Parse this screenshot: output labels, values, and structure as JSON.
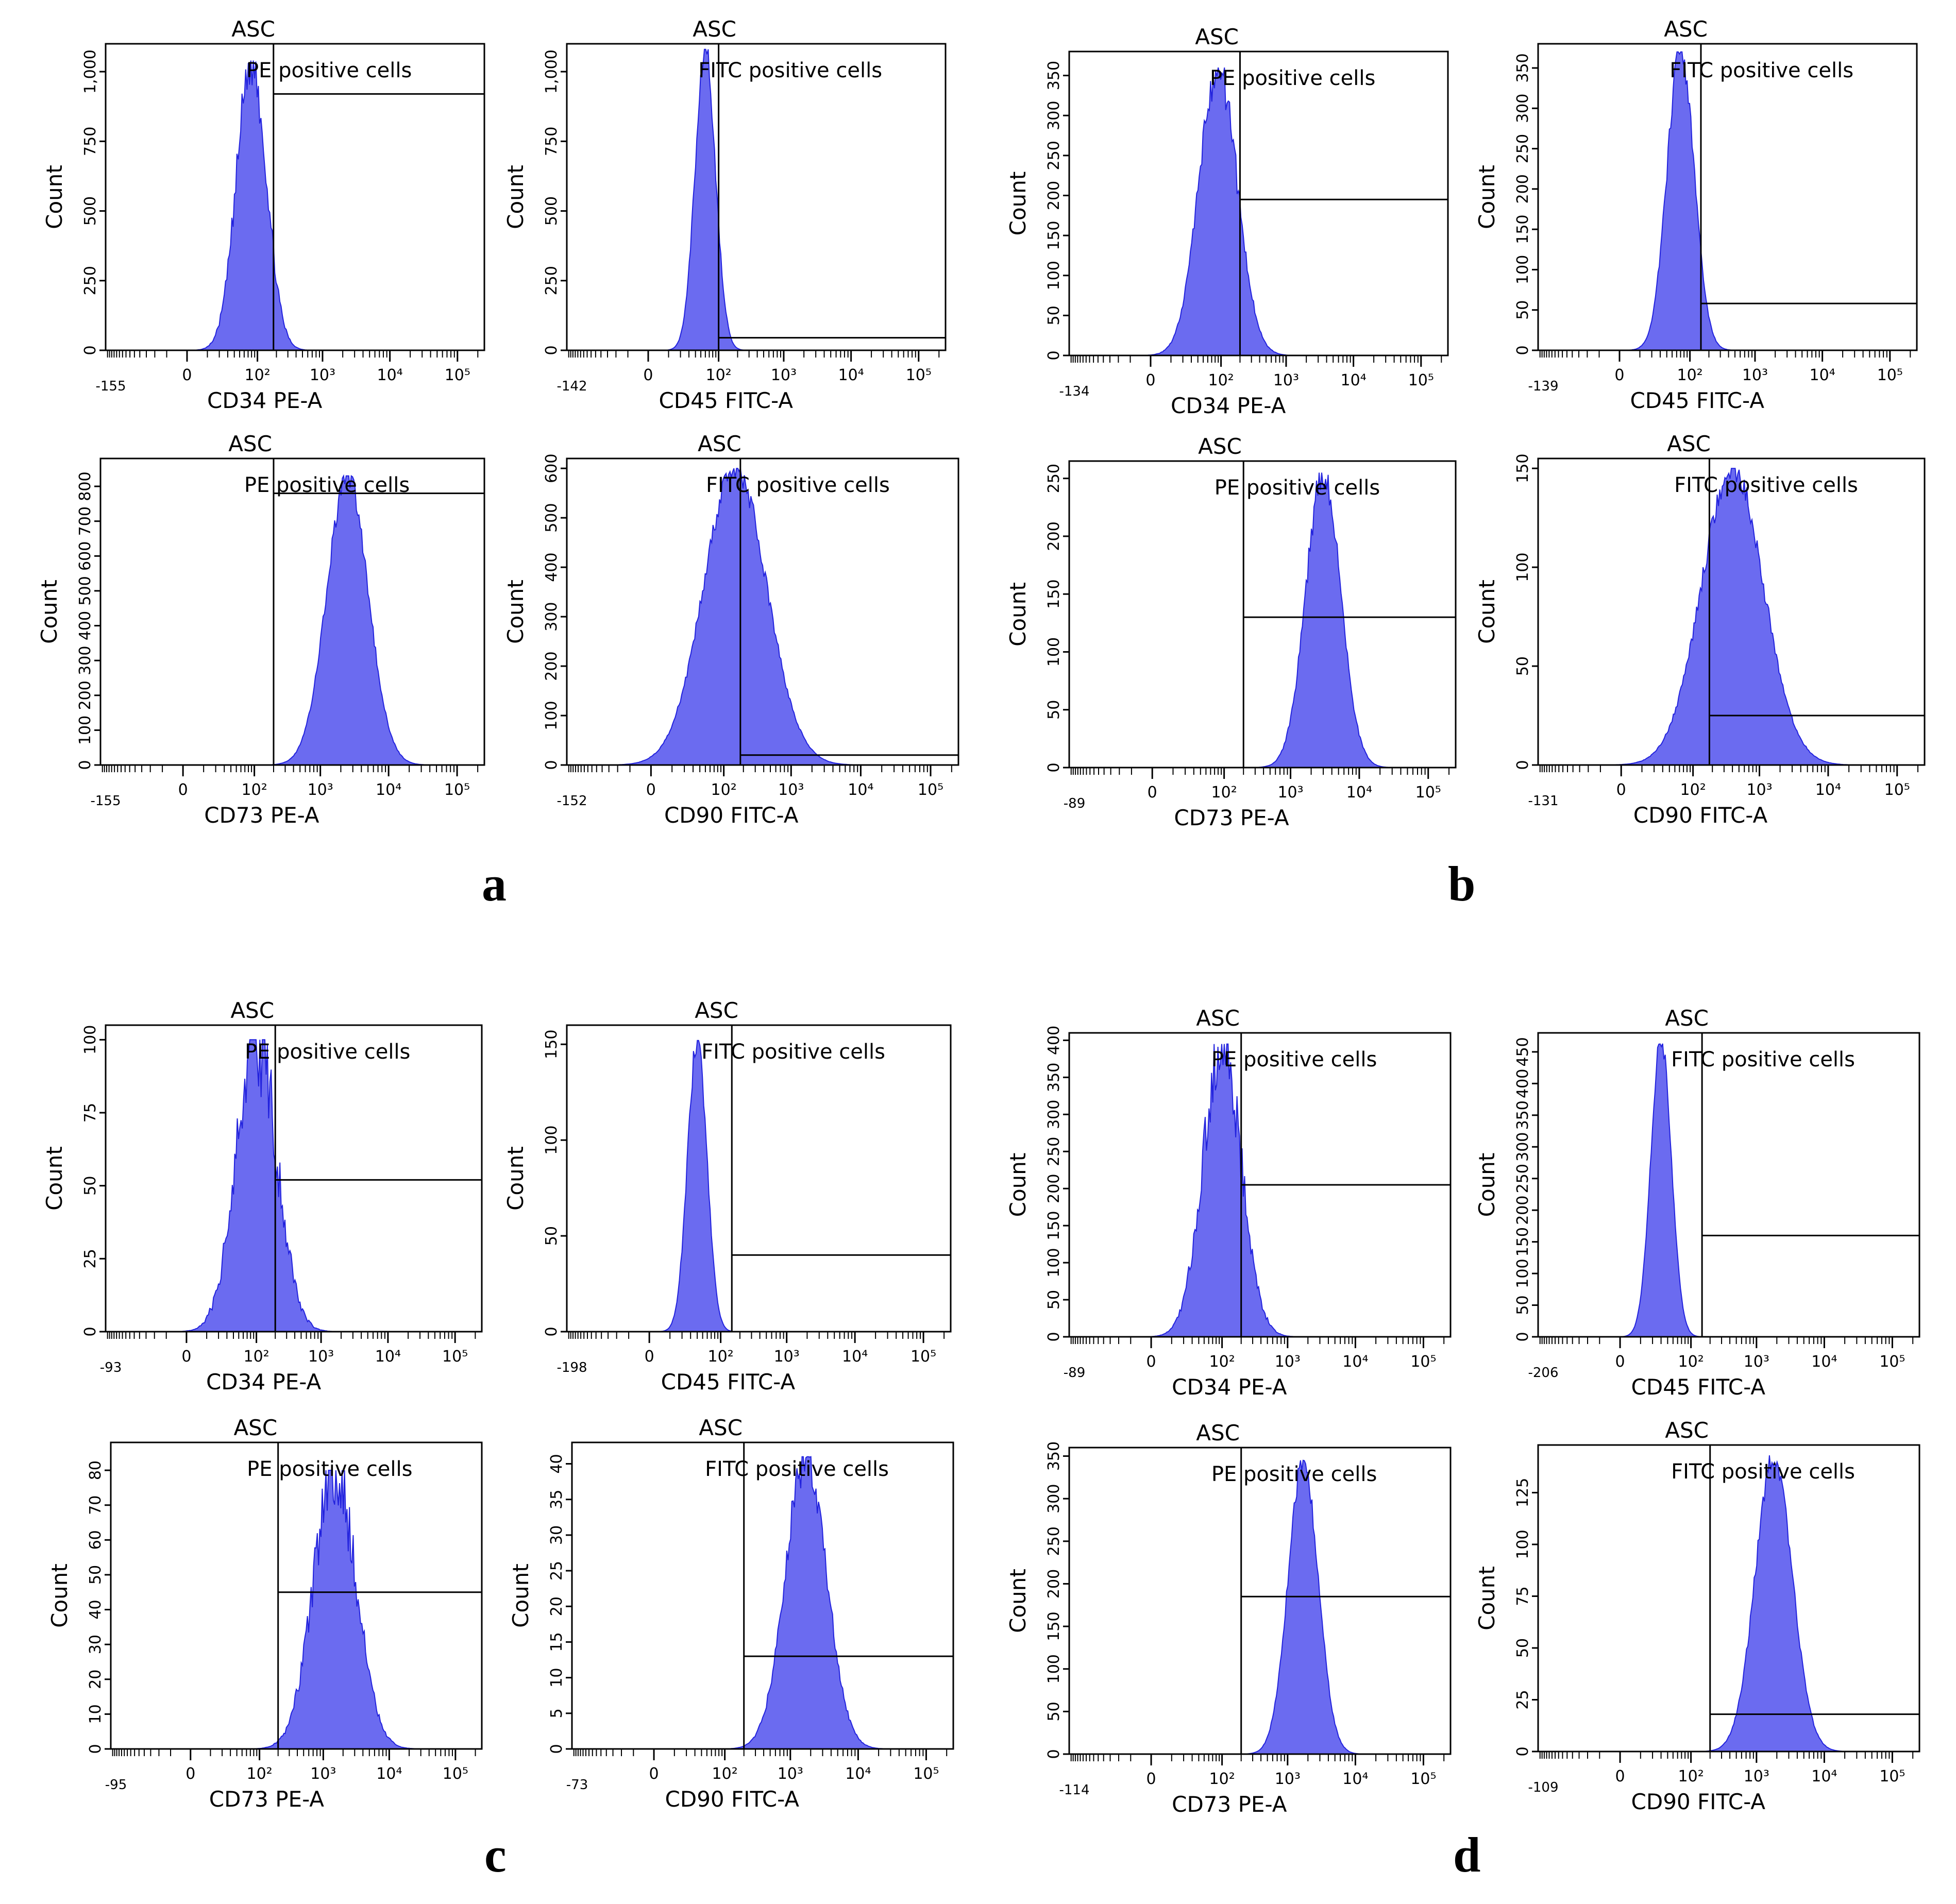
{
  "figure": {
    "panel_letters": [
      "a",
      "b",
      "c",
      "d"
    ]
  },
  "colors": {
    "fill": "#6b6bf0",
    "stroke": "#2222dd",
    "axis": "#000000",
    "gate": "#000000"
  },
  "chart_data": [
    {
      "id": "a1",
      "type": "area",
      "title": "ASC",
      "xlabel": "CD34 PE-A",
      "ylabel": "Count",
      "xmin_label": "-155",
      "ylim": [
        0,
        1100
      ],
      "yticks": [
        0,
        250,
        500,
        750,
        1000
      ],
      "ytick_labels": [
        "0",
        "250",
        "500",
        "750",
        "1,000"
      ],
      "gate_label": "PE positive cells",
      "gate_x": 180,
      "gate_y": 920,
      "peak_x": 80,
      "peak_count": 1040,
      "width": 0.22,
      "jitter": 0.1
    },
    {
      "id": "a2",
      "type": "area",
      "title": "ASC",
      "xlabel": "CD45 FITC-A",
      "ylabel": "Count",
      "xmin_label": "-142",
      "ylim": [
        0,
        1100
      ],
      "yticks": [
        0,
        250,
        500,
        750,
        1000
      ],
      "ytick_labels": [
        "0",
        "250",
        "500",
        "750",
        "1,000"
      ],
      "gate_label": "FITC positive cells",
      "gate_x": 100,
      "gate_y": 45,
      "peak_x": 60,
      "peak_count": 1080,
      "width": 0.15,
      "jitter": 0.05
    },
    {
      "id": "b1",
      "type": "area",
      "title": "ASC",
      "xlabel": "CD34 PE-A",
      "ylabel": "Count",
      "xmin_label": "-134",
      "ylim": [
        0,
        380
      ],
      "yticks": [
        0,
        50,
        100,
        150,
        200,
        250,
        300,
        350
      ],
      "ytick_labels": [
        "0",
        "50",
        "100",
        "150",
        "200",
        "250",
        "300",
        "350"
      ],
      "gate_label": "PE positive cells",
      "gate_x": 200,
      "gate_y": 195,
      "peak_x": 90,
      "peak_count": 360,
      "width": 0.28,
      "jitter": 0.08
    },
    {
      "id": "b2",
      "type": "area",
      "title": "ASC",
      "xlabel": "CD45 FITC-A",
      "ylabel": "Count",
      "xmin_label": "-139",
      "ylim": [
        0,
        380
      ],
      "yticks": [
        0,
        50,
        100,
        150,
        200,
        250,
        300,
        350
      ],
      "ytick_labels": [
        "0",
        "50",
        "100",
        "150",
        "200",
        "250",
        "300",
        "350"
      ],
      "gate_label": "FITC positive cells",
      "gate_x": 150,
      "gate_y": 58,
      "peak_x": 70,
      "peak_count": 370,
      "width": 0.2,
      "jitter": 0.05
    },
    {
      "id": "a3",
      "type": "area",
      "title": "ASC",
      "xlabel": "CD73 PE-A",
      "ylabel": "Count",
      "xmin_label": "-155",
      "ylim": [
        0,
        880
      ],
      "yticks": [
        0,
        100,
        200,
        300,
        400,
        500,
        600,
        700,
        800
      ],
      "ytick_labels": [
        "0",
        "100",
        "200",
        "300",
        "400",
        "500",
        "600",
        "700",
        "800"
      ],
      "gate_label": "PE positive cells",
      "gate_x": 200,
      "gate_y": 780,
      "peak_x": 2500,
      "peak_count": 830,
      "width": 0.3,
      "jitter": 0.04
    },
    {
      "id": "a4",
      "type": "area",
      "title": "ASC",
      "xlabel": "CD90 FITC-A",
      "ylabel": "Count",
      "xmin_label": "-152",
      "ylim": [
        0,
        620
      ],
      "yticks": [
        0,
        100,
        200,
        300,
        400,
        500,
        600
      ],
      "ytick_labels": [
        "0",
        "100",
        "200",
        "300",
        "400",
        "500",
        "600"
      ],
      "gate_label": "FITC positive cells",
      "gate_x": 180,
      "gate_y": 20,
      "peak_x": 150,
      "peak_count": 600,
      "width": 0.45,
      "jitter": 0.04
    },
    {
      "id": "b3",
      "type": "area",
      "title": "ASC",
      "xlabel": "CD73 PE-A",
      "ylabel": "Count",
      "xmin_label": "-89",
      "ylim": [
        0,
        265
      ],
      "yticks": [
        0,
        50,
        100,
        150,
        200,
        250
      ],
      "ytick_labels": [
        "0",
        "50",
        "100",
        "150",
        "200",
        "250"
      ],
      "gate_label": "PE positive cells",
      "gate_x": 200,
      "gate_y": 130,
      "peak_x": 3000,
      "peak_count": 255,
      "width": 0.25,
      "jitter": 0.06
    },
    {
      "id": "b4",
      "type": "area",
      "title": "ASC",
      "xlabel": "CD90 FITC-A",
      "ylabel": "Count",
      "xmin_label": "-131",
      "ylim": [
        0,
        155
      ],
      "yticks": [
        0,
        50,
        100,
        150
      ],
      "ytick_labels": [
        "0",
        "50",
        "100",
        "150"
      ],
      "gate_label": "FITC positive cells",
      "gate_x": 180,
      "gate_y": 25,
      "peak_x": 400,
      "peak_count": 150,
      "width": 0.45,
      "jitter": 0.05
    },
    {
      "id": "c1",
      "type": "area",
      "title": "ASC",
      "xlabel": "CD34 PE-A",
      "ylabel": "Count",
      "xmin_label": "-93",
      "ylim": [
        0,
        105
      ],
      "yticks": [
        0,
        25,
        50,
        75,
        100
      ],
      "ytick_labels": [
        "0",
        "25",
        "50",
        "75",
        "100"
      ],
      "gate_label": "PE positive cells",
      "gate_x": 200,
      "gate_y": 52,
      "peak_x": 100,
      "peak_count": 100,
      "width": 0.3,
      "jitter": 0.18
    },
    {
      "id": "c2",
      "type": "area",
      "title": "ASC",
      "xlabel": "CD45 FITC-A",
      "ylabel": "Count",
      "xmin_label": "-198",
      "ylim": [
        0,
        160
      ],
      "yticks": [
        0,
        50,
        100,
        150
      ],
      "ytick_labels": [
        "0",
        "50",
        "100",
        "150"
      ],
      "gate_label": "FITC positive cells",
      "gate_x": 150,
      "gate_y": 40,
      "peak_x": 40,
      "peak_count": 152,
      "width": 0.14,
      "jitter": 0.04
    },
    {
      "id": "d1",
      "type": "area",
      "title": "ASC",
      "xlabel": "CD34 PE-A",
      "ylabel": "Count",
      "xmin_label": "-89",
      "ylim": [
        0,
        410
      ],
      "yticks": [
        0,
        50,
        100,
        150,
        200,
        250,
        300,
        350,
        400
      ],
      "ytick_labels": [
        "0",
        "50",
        "100",
        "150",
        "200",
        "250",
        "300",
        "350",
        "400"
      ],
      "gate_label": "PE positive cells",
      "gate_x": 200,
      "gate_y": 205,
      "peak_x": 100,
      "peak_count": 395,
      "width": 0.28,
      "jitter": 0.12
    },
    {
      "id": "d2",
      "type": "area",
      "title": "ASC",
      "xlabel": "CD45 FITC-A",
      "ylabel": "Count",
      "xmin_label": "-206",
      "ylim": [
        0,
        480
      ],
      "yticks": [
        0,
        50,
        100,
        150,
        200,
        250,
        300,
        350,
        400,
        450
      ],
      "ytick_labels": [
        "0",
        "50",
        "100",
        "150",
        "200",
        "250",
        "300",
        "350",
        "400",
        "450"
      ],
      "gate_label": "FITC positive cells",
      "gate_x": 150,
      "gate_y": 160,
      "peak_x": 30,
      "peak_count": 470,
      "width": 0.15,
      "jitter": 0.03
    },
    {
      "id": "c3",
      "type": "area",
      "title": "ASC",
      "xlabel": "CD73 PE-A",
      "ylabel": "Count",
      "xmin_label": "-95",
      "ylim": [
        0,
        88
      ],
      "yticks": [
        0,
        10,
        20,
        30,
        40,
        50,
        60,
        70,
        80
      ],
      "ytick_labels": [
        "0",
        "10",
        "20",
        "30",
        "40",
        "50",
        "60",
        "70",
        "80"
      ],
      "gate_label": "PE positive cells",
      "gate_x": 200,
      "gate_y": 45,
      "peak_x": 1500,
      "peak_count": 80,
      "width": 0.32,
      "jitter": 0.14
    },
    {
      "id": "c4",
      "type": "area",
      "title": "ASC",
      "xlabel": "CD90 FITC-A",
      "ylabel": "Count",
      "xmin_label": "-73",
      "ylim": [
        0,
        43
      ],
      "yticks": [
        0,
        5,
        10,
        15,
        20,
        25,
        30,
        35,
        40
      ],
      "ytick_labels": [
        "0",
        "5",
        "10",
        "15",
        "20",
        "25",
        "30",
        "35",
        "40"
      ],
      "gate_label": "FITC positive cells",
      "gate_x": 200,
      "gate_y": 13,
      "peak_x": 1700,
      "peak_count": 41,
      "width": 0.3,
      "jitter": 0.08
    },
    {
      "id": "d3",
      "type": "area",
      "title": "ASC",
      "xlabel": "CD73 PE-A",
      "ylabel": "Count",
      "xmin_label": "-114",
      "ylim": [
        0,
        360
      ],
      "yticks": [
        0,
        50,
        100,
        150,
        200,
        250,
        300,
        350
      ],
      "ytick_labels": [
        "0",
        "50",
        "100",
        "150",
        "200",
        "250",
        "300",
        "350"
      ],
      "gate_label": "PE positive cells",
      "gate_x": 200,
      "gate_y": 185,
      "peak_x": 1700,
      "peak_count": 345,
      "width": 0.22,
      "jitter": 0.04
    },
    {
      "id": "d4",
      "type": "area",
      "title": "ASC",
      "xlabel": "CD90 FITC-A",
      "ylabel": "Count",
      "xmin_label": "-109",
      "ylim": [
        0,
        148
      ],
      "yticks": [
        0,
        25,
        50,
        75,
        100,
        125
      ],
      "ytick_labels": [
        "0",
        "25",
        "50",
        "75",
        "100",
        "125"
      ],
      "gate_label": "FITC positive cells",
      "gate_x": 200,
      "gate_y": 18,
      "peak_x": 1800,
      "peak_count": 143,
      "width": 0.27,
      "jitter": 0.04
    }
  ]
}
